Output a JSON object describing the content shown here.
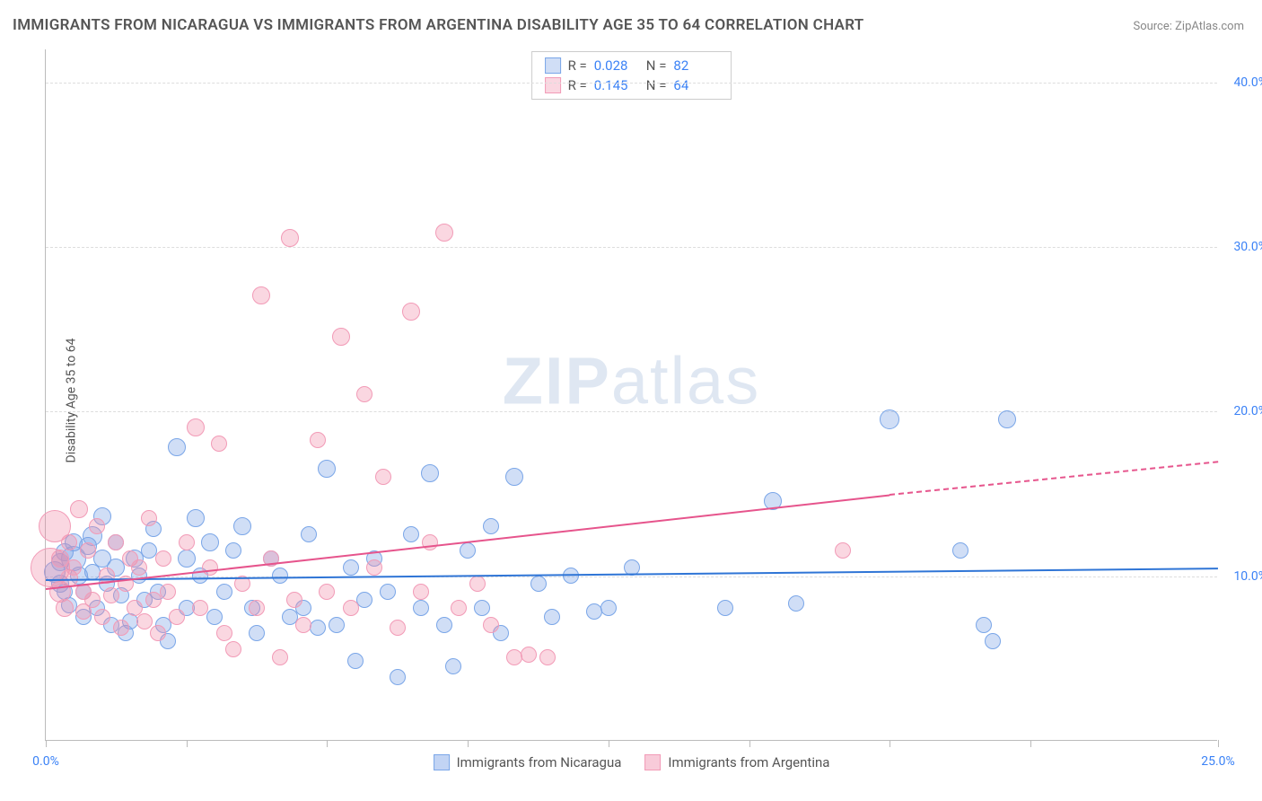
{
  "title": "IMMIGRANTS FROM NICARAGUA VS IMMIGRANTS FROM ARGENTINA DISABILITY AGE 35 TO 64 CORRELATION CHART",
  "source": "Source: ZipAtlas.com",
  "ylabel": "Disability Age 35 to 64",
  "watermark_a": "ZIP",
  "watermark_b": "atlas",
  "chart": {
    "type": "scatter",
    "xlim": [
      0,
      25
    ],
    "ylim": [
      0,
      42
    ],
    "xtick_positions": [
      0,
      3,
      6,
      9,
      12,
      15,
      18,
      21,
      25
    ],
    "xtick_labels_shown": {
      "0": "0.0%",
      "25": "25.0%"
    },
    "ytick_positions": [
      10,
      20,
      30,
      40
    ],
    "ytick_labels": [
      "10.0%",
      "20.0%",
      "30.0%",
      "40.0%"
    ],
    "background_color": "#ffffff",
    "grid_color": "#dddddd",
    "axis_color": "#bbbbbb",
    "tick_label_color": "#3b82f6",
    "series": [
      {
        "name": "Immigrants from Nicaragua",
        "color_fill": "rgba(120,160,230,0.35)",
        "color_stroke": "#7aa6e8",
        "trend_color": "#2f75d6",
        "R": "0.028",
        "N": "82",
        "trend": {
          "x1": 0,
          "y1": 9.8,
          "x2": 25,
          "y2": 10.5
        },
        "points": [
          [
            0.2,
            10.2,
            12
          ],
          [
            0.3,
            9.5,
            10
          ],
          [
            0.3,
            10.8,
            10
          ],
          [
            0.4,
            11.4,
            10
          ],
          [
            0.4,
            9.0,
            9
          ],
          [
            0.5,
            8.2,
            9
          ],
          [
            0.6,
            12.0,
            10
          ],
          [
            0.6,
            11.0,
            14
          ],
          [
            0.7,
            10.0,
            10
          ],
          [
            0.8,
            9.0,
            9
          ],
          [
            0.8,
            7.5,
            9
          ],
          [
            0.9,
            11.8,
            10
          ],
          [
            1.0,
            12.4,
            11
          ],
          [
            1.0,
            10.2,
            9
          ],
          [
            1.1,
            8.0,
            9
          ],
          [
            1.2,
            11.0,
            10
          ],
          [
            1.2,
            13.6,
            10
          ],
          [
            1.3,
            9.5,
            9
          ],
          [
            1.4,
            7.0,
            9
          ],
          [
            1.5,
            10.5,
            10
          ],
          [
            1.5,
            12.0,
            9
          ],
          [
            1.6,
            8.8,
            9
          ],
          [
            1.7,
            6.5,
            9
          ],
          [
            1.8,
            7.2,
            9
          ],
          [
            1.9,
            11.0,
            10
          ],
          [
            2.0,
            10.0,
            9
          ],
          [
            2.1,
            8.5,
            9
          ],
          [
            2.2,
            11.5,
            9
          ],
          [
            2.3,
            12.8,
            9
          ],
          [
            2.4,
            9.0,
            9
          ],
          [
            2.5,
            7.0,
            9
          ],
          [
            2.6,
            6.0,
            9
          ],
          [
            2.8,
            17.8,
            10
          ],
          [
            3.0,
            11.0,
            10
          ],
          [
            3.0,
            8.0,
            9
          ],
          [
            3.2,
            13.5,
            10
          ],
          [
            3.3,
            10.0,
            9
          ],
          [
            3.5,
            12.0,
            10
          ],
          [
            3.6,
            7.5,
            9
          ],
          [
            3.8,
            9.0,
            9
          ],
          [
            4.0,
            11.5,
            9
          ],
          [
            4.2,
            13.0,
            10
          ],
          [
            4.4,
            8.0,
            9
          ],
          [
            4.5,
            6.5,
            9
          ],
          [
            4.8,
            11.0,
            9
          ],
          [
            5.0,
            10.0,
            9
          ],
          [
            5.2,
            7.5,
            9
          ],
          [
            5.5,
            8.0,
            9
          ],
          [
            5.6,
            12.5,
            9
          ],
          [
            5.8,
            6.8,
            9
          ],
          [
            6.0,
            16.5,
            10
          ],
          [
            6.2,
            7.0,
            9
          ],
          [
            6.5,
            10.5,
            9
          ],
          [
            6.6,
            4.8,
            9
          ],
          [
            6.8,
            8.5,
            9
          ],
          [
            7.0,
            11.0,
            9
          ],
          [
            7.3,
            9.0,
            9
          ],
          [
            7.5,
            3.8,
            9
          ],
          [
            7.8,
            12.5,
            9
          ],
          [
            8.0,
            8.0,
            9
          ],
          [
            8.2,
            16.2,
            10
          ],
          [
            8.5,
            7.0,
            9
          ],
          [
            8.7,
            4.5,
            9
          ],
          [
            9.0,
            11.5,
            9
          ],
          [
            9.3,
            8.0,
            9
          ],
          [
            9.5,
            13.0,
            9
          ],
          [
            9.7,
            6.5,
            9
          ],
          [
            10.0,
            16.0,
            10
          ],
          [
            10.5,
            9.5,
            9
          ],
          [
            10.8,
            7.5,
            9
          ],
          [
            11.2,
            10.0,
            9
          ],
          [
            11.7,
            7.8,
            9
          ],
          [
            12.0,
            8.0,
            9
          ],
          [
            12.5,
            10.5,
            9
          ],
          [
            14.5,
            8.0,
            9
          ],
          [
            15.5,
            14.5,
            10
          ],
          [
            16.0,
            8.3,
            9
          ],
          [
            18.0,
            19.5,
            11
          ],
          [
            19.5,
            11.5,
            9
          ],
          [
            20.0,
            7.0,
            9
          ],
          [
            20.2,
            6.0,
            9
          ],
          [
            20.5,
            19.5,
            10
          ]
        ]
      },
      {
        "name": "Immigrants from Argentina",
        "color_fill": "rgba(240,140,170,0.35)",
        "color_stroke": "#f29bb7",
        "trend_color": "#e6548c",
        "R": "0.145",
        "N": "64",
        "trend": {
          "x1": 0,
          "y1": 9.3,
          "x2": 18,
          "y2": 15.0,
          "x3": 25,
          "y3": 17.0
        },
        "points": [
          [
            0.1,
            10.5,
            22
          ],
          [
            0.2,
            13.0,
            18
          ],
          [
            0.3,
            9.0,
            12
          ],
          [
            0.3,
            11.0,
            10
          ],
          [
            0.4,
            8.0,
            10
          ],
          [
            0.5,
            9.8,
            10
          ],
          [
            0.5,
            12.0,
            9
          ],
          [
            0.6,
            10.5,
            9
          ],
          [
            0.7,
            14.0,
            10
          ],
          [
            0.8,
            9.0,
            9
          ],
          [
            0.8,
            7.8,
            9
          ],
          [
            0.9,
            11.5,
            9
          ],
          [
            1.0,
            8.5,
            9
          ],
          [
            1.1,
            13.0,
            9
          ],
          [
            1.2,
            7.5,
            9
          ],
          [
            1.3,
            10.0,
            9
          ],
          [
            1.4,
            8.8,
            9
          ],
          [
            1.5,
            12.0,
            9
          ],
          [
            1.6,
            6.8,
            9
          ],
          [
            1.7,
            9.5,
            9
          ],
          [
            1.8,
            11.0,
            9
          ],
          [
            1.9,
            8.0,
            9
          ],
          [
            2.0,
            10.5,
            9
          ],
          [
            2.1,
            7.2,
            9
          ],
          [
            2.2,
            13.5,
            9
          ],
          [
            2.3,
            8.5,
            9
          ],
          [
            2.4,
            6.5,
            9
          ],
          [
            2.5,
            11.0,
            9
          ],
          [
            2.6,
            9.0,
            9
          ],
          [
            2.8,
            7.5,
            9
          ],
          [
            3.0,
            12.0,
            9
          ],
          [
            3.2,
            19.0,
            10
          ],
          [
            3.3,
            8.0,
            9
          ],
          [
            3.5,
            10.5,
            9
          ],
          [
            3.7,
            18.0,
            9
          ],
          [
            3.8,
            6.5,
            9
          ],
          [
            4.0,
            5.5,
            9
          ],
          [
            4.2,
            9.5,
            9
          ],
          [
            4.5,
            8.0,
            9
          ],
          [
            4.6,
            27.0,
            10
          ],
          [
            4.8,
            11.0,
            9
          ],
          [
            5.0,
            5.0,
            9
          ],
          [
            5.2,
            30.5,
            10
          ],
          [
            5.3,
            8.5,
            9
          ],
          [
            5.5,
            7.0,
            9
          ],
          [
            5.8,
            18.2,
            9
          ],
          [
            6.0,
            9.0,
            9
          ],
          [
            6.3,
            24.5,
            10
          ],
          [
            6.5,
            8.0,
            9
          ],
          [
            6.8,
            21.0,
            9
          ],
          [
            7.0,
            10.5,
            9
          ],
          [
            7.2,
            16.0,
            9
          ],
          [
            7.5,
            6.8,
            9
          ],
          [
            7.8,
            26.0,
            10
          ],
          [
            8.0,
            9.0,
            9
          ],
          [
            8.2,
            12.0,
            9
          ],
          [
            8.5,
            30.8,
            10
          ],
          [
            8.8,
            8.0,
            9
          ],
          [
            9.2,
            9.5,
            9
          ],
          [
            9.5,
            7.0,
            9
          ],
          [
            10.0,
            5.0,
            9
          ],
          [
            10.3,
            5.2,
            9
          ],
          [
            10.7,
            5.0,
            9
          ],
          [
            17.0,
            11.5,
            9
          ]
        ]
      }
    ]
  },
  "legend_bottom": [
    {
      "label": "Immigrants from Nicaragua",
      "fill": "rgba(120,160,230,0.45)",
      "stroke": "#7aa6e8"
    },
    {
      "label": "Immigrants from Argentina",
      "fill": "rgba(240,140,170,0.45)",
      "stroke": "#f29bb7"
    }
  ]
}
